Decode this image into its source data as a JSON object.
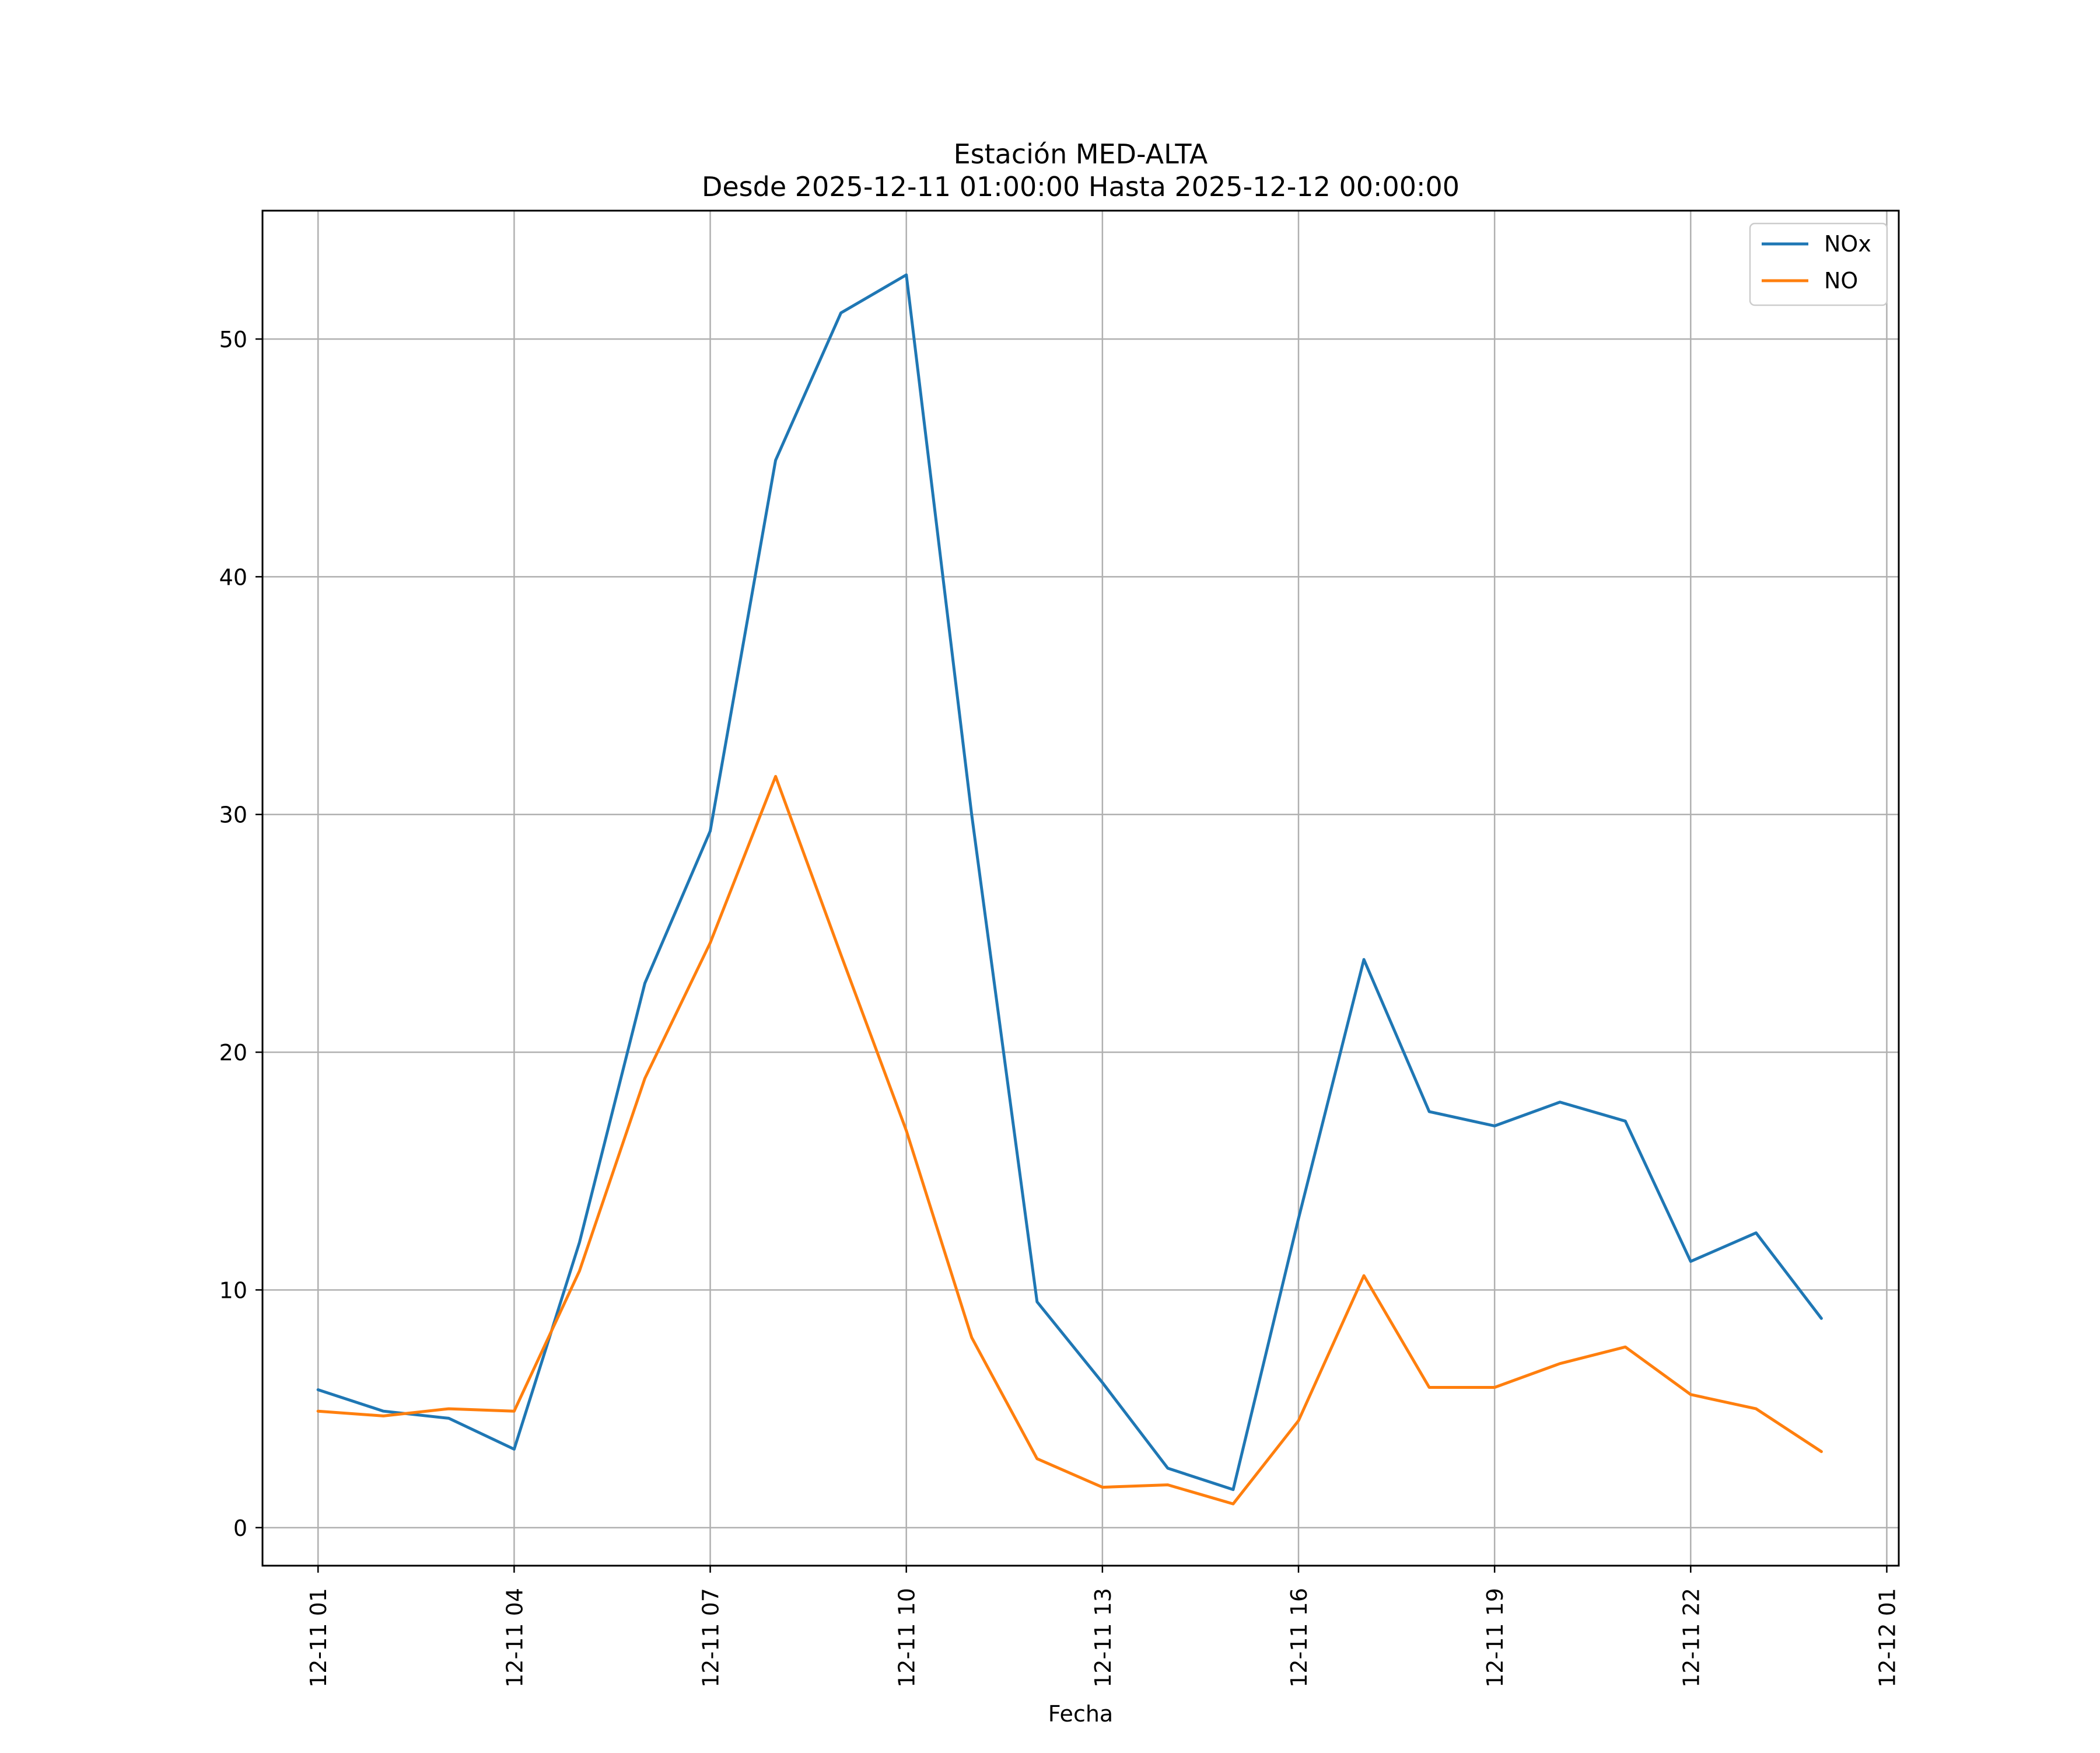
{
  "chart_data": {
    "type": "line",
    "title": "Estación MED-ALTA",
    "subtitle": "Desde 2025-12-11 01:00:00 Hasta 2025-12-12 00:00:00",
    "xlabel": "Fecha",
    "ylabel": "",
    "x": [
      "2025-12-11 01:00",
      "2025-12-11 02:00",
      "2025-12-11 03:00",
      "2025-12-11 04:00",
      "2025-12-11 05:00",
      "2025-12-11 06:00",
      "2025-12-11 07:00",
      "2025-12-11 08:00",
      "2025-12-11 09:00",
      "2025-12-11 10:00",
      "2025-12-11 11:00",
      "2025-12-11 12:00",
      "2025-12-11 13:00",
      "2025-12-11 14:00",
      "2025-12-11 15:00",
      "2025-12-11 16:00",
      "2025-12-11 17:00",
      "2025-12-11 18:00",
      "2025-12-11 19:00",
      "2025-12-11 20:00",
      "2025-12-11 21:00",
      "2025-12-11 22:00",
      "2025-12-11 23:00",
      "2025-12-12 00:00"
    ],
    "series": [
      {
        "name": "NOx",
        "color": "#1f77b4",
        "values": [
          5.8,
          4.9,
          4.6,
          3.3,
          12.0,
          22.9,
          29.3,
          44.9,
          51.1,
          52.7,
          30.0,
          9.5,
          6.1,
          2.5,
          1.6,
          13.0,
          23.9,
          17.5,
          16.9,
          17.9,
          17.1,
          11.2,
          12.4,
          8.8
        ]
      },
      {
        "name": "NO",
        "color": "#ff7f0e",
        "values": [
          4.9,
          4.7,
          5.0,
          4.9,
          10.8,
          18.9,
          24.6,
          31.6,
          24.1,
          16.7,
          8.0,
          2.9,
          1.7,
          1.8,
          1.0,
          4.5,
          10.6,
          5.9,
          5.9,
          6.9,
          7.6,
          5.6,
          5.0,
          3.2
        ]
      }
    ],
    "xticks": [
      "12-11 01",
      "12-11 04",
      "12-11 07",
      "12-11 10",
      "12-11 13",
      "12-11 16",
      "12-11 19",
      "12-11 22",
      "12-12 01"
    ],
    "yticks": [
      "0",
      "10",
      "20",
      "30",
      "40",
      "50"
    ],
    "ylim": [
      -1.6,
      55.4
    ],
    "xlim": [
      "2025-12-11 00:09",
      "2025-12-12 01:11"
    ],
    "grid": true,
    "legend": "top-right"
  }
}
